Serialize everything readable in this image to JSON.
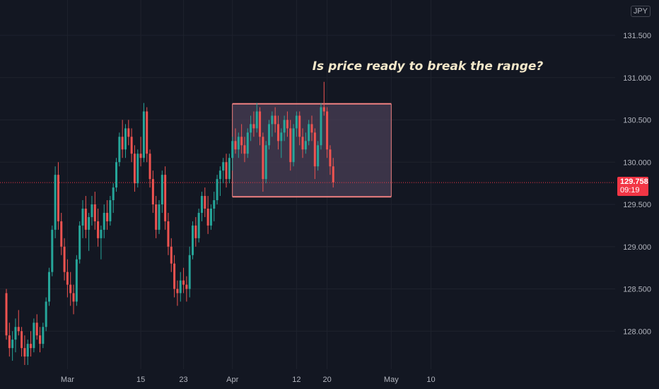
{
  "currency_badge": "JPY",
  "annotation": "Is price ready to break the range?",
  "price_tag": {
    "price": "129.758",
    "timer": "09:19",
    "color": "#f23645"
  },
  "colors": {
    "background": "#131722",
    "up": "#26a69a",
    "down": "#ef5350",
    "range_box_fill": "#4a3f55",
    "range_box_stroke": "#f08080"
  },
  "chart_data": {
    "type": "candlestick",
    "title": "",
    "xlabel": "",
    "ylabel": "",
    "y_ticks": [
      "131.500",
      "131.000",
      "130.500",
      "130.000",
      "129.500",
      "129.000",
      "128.500",
      "128.000"
    ],
    "ylim": [
      127.6,
      131.8
    ],
    "x_ticks": [
      {
        "label": "Mar",
        "index": 20
      },
      {
        "label": "15",
        "index": 44
      },
      {
        "label": "23",
        "index": 58
      },
      {
        "label": "Apr",
        "index": 74
      },
      {
        "label": "12",
        "index": 95
      },
      {
        "label": "20",
        "index": 105
      },
      {
        "label": "May",
        "index": 126
      },
      {
        "label": "10",
        "index": 139
      }
    ],
    "current_price": 129.758,
    "range_box": {
      "start_index": 74,
      "end_index": 126,
      "top": 130.69,
      "bottom": 129.59
    },
    "ohlc": [
      [
        128.45,
        128.5,
        127.9,
        127.95
      ],
      [
        127.95,
        128.1,
        127.7,
        127.8
      ],
      [
        127.8,
        128.0,
        127.65,
        127.9
      ],
      [
        127.9,
        128.15,
        127.75,
        128.05
      ],
      [
        128.05,
        128.25,
        127.95,
        128.0
      ],
      [
        128.0,
        128.05,
        127.7,
        127.8
      ],
      [
        127.8,
        127.95,
        127.6,
        127.7
      ],
      [
        127.7,
        127.9,
        127.6,
        127.85
      ],
      [
        127.85,
        128.0,
        127.7,
        127.8
      ],
      [
        127.8,
        128.15,
        127.75,
        128.1
      ],
      [
        128.1,
        128.2,
        127.9,
        127.95
      ],
      [
        127.95,
        128.05,
        127.75,
        127.85
      ],
      [
        127.85,
        128.1,
        127.8,
        128.05
      ],
      [
        128.05,
        128.4,
        128.0,
        128.35
      ],
      [
        128.35,
        128.75,
        128.3,
        128.7
      ],
      [
        128.7,
        129.25,
        128.65,
        129.2
      ],
      [
        129.2,
        129.95,
        129.1,
        129.85
      ],
      [
        129.85,
        130.0,
        129.2,
        129.3
      ],
      [
        129.3,
        129.4,
        128.9,
        129.0
      ],
      [
        129.0,
        129.1,
        128.6,
        128.7
      ],
      [
        128.7,
        128.85,
        128.4,
        128.55
      ],
      [
        128.55,
        128.7,
        128.3,
        128.45
      ],
      [
        128.45,
        128.55,
        128.2,
        128.35
      ],
      [
        128.35,
        128.9,
        128.3,
        128.85
      ],
      [
        128.85,
        129.3,
        128.8,
        129.25
      ],
      [
        129.25,
        129.55,
        129.1,
        129.45
      ],
      [
        129.45,
        129.6,
        129.1,
        129.2
      ],
      [
        129.2,
        129.4,
        128.95,
        129.35
      ],
      [
        129.35,
        129.6,
        129.25,
        129.5
      ],
      [
        129.5,
        129.65,
        129.2,
        129.3
      ],
      [
        129.3,
        129.45,
        129.0,
        129.1
      ],
      [
        129.1,
        129.25,
        128.85,
        129.2
      ],
      [
        129.2,
        129.5,
        129.1,
        129.4
      ],
      [
        129.4,
        129.55,
        129.2,
        129.3
      ],
      [
        129.3,
        129.6,
        129.25,
        129.55
      ],
      [
        129.55,
        129.75,
        129.4,
        129.7
      ],
      [
        129.7,
        130.05,
        129.65,
        130.0
      ],
      [
        130.0,
        130.35,
        129.95,
        130.3
      ],
      [
        130.3,
        130.5,
        130.05,
        130.15
      ],
      [
        130.15,
        130.45,
        130.05,
        130.4
      ],
      [
        130.4,
        130.5,
        130.2,
        130.3
      ],
      [
        130.3,
        130.4,
        130.0,
        130.1
      ],
      [
        130.1,
        130.2,
        129.65,
        129.75
      ],
      [
        129.75,
        130.15,
        129.7,
        130.1
      ],
      [
        130.1,
        130.3,
        129.95,
        130.05
      ],
      [
        130.05,
        130.7,
        130.0,
        130.6
      ],
      [
        130.6,
        130.65,
        130.0,
        130.1
      ],
      [
        130.1,
        130.15,
        129.7,
        129.8
      ],
      [
        129.8,
        129.9,
        129.4,
        129.5
      ],
      [
        129.5,
        129.6,
        129.1,
        129.2
      ],
      [
        129.2,
        129.55,
        129.15,
        129.5
      ],
      [
        129.5,
        129.9,
        129.4,
        129.85
      ],
      [
        129.85,
        129.95,
        129.2,
        129.3
      ],
      [
        129.3,
        129.4,
        128.9,
        129.0
      ],
      [
        129.0,
        129.1,
        128.7,
        128.8
      ],
      [
        128.8,
        128.9,
        128.4,
        128.5
      ],
      [
        128.5,
        128.6,
        128.3,
        128.45
      ],
      [
        128.45,
        128.7,
        128.35,
        128.6
      ],
      [
        128.6,
        128.75,
        128.45,
        128.55
      ],
      [
        128.55,
        128.65,
        128.35,
        128.5
      ],
      [
        128.5,
        129.0,
        128.4,
        128.9
      ],
      [
        128.9,
        129.3,
        128.85,
        129.25
      ],
      [
        129.25,
        129.35,
        129.0,
        129.1
      ],
      [
        129.1,
        129.45,
        129.05,
        129.4
      ],
      [
        129.4,
        129.65,
        129.3,
        129.6
      ],
      [
        129.6,
        129.7,
        129.35,
        129.45
      ],
      [
        129.45,
        129.6,
        129.15,
        129.25
      ],
      [
        129.25,
        129.5,
        129.2,
        129.45
      ],
      [
        129.45,
        129.65,
        129.3,
        129.55
      ],
      [
        129.55,
        129.85,
        129.5,
        129.8
      ],
      [
        129.8,
        129.95,
        129.6,
        129.9
      ],
      [
        129.9,
        130.05,
        129.75,
        130.0
      ],
      [
        130.0,
        130.1,
        129.7,
        129.8
      ],
      [
        129.8,
        130.1,
        129.75,
        130.05
      ],
      [
        130.05,
        130.3,
        129.9,
        130.25
      ],
      [
        130.25,
        130.4,
        130.1,
        130.15
      ],
      [
        130.15,
        130.35,
        130.05,
        130.3
      ],
      [
        130.3,
        130.45,
        130.1,
        130.2
      ],
      [
        130.2,
        130.3,
        130.0,
        130.1
      ],
      [
        130.1,
        130.4,
        130.05,
        130.35
      ],
      [
        130.35,
        130.55,
        130.25,
        130.45
      ],
      [
        130.45,
        130.6,
        130.3,
        130.4
      ],
      [
        130.4,
        130.7,
        130.35,
        130.6
      ],
      [
        130.6,
        130.65,
        130.2,
        130.3
      ],
      [
        130.3,
        130.35,
        129.65,
        129.8
      ],
      [
        129.8,
        130.25,
        129.75,
        130.2
      ],
      [
        130.2,
        130.5,
        130.15,
        130.45
      ],
      [
        130.45,
        130.6,
        130.3,
        130.55
      ],
      [
        130.55,
        130.65,
        130.35,
        130.45
      ],
      [
        130.45,
        130.55,
        130.15,
        130.25
      ],
      [
        130.25,
        130.4,
        130.05,
        130.35
      ],
      [
        130.35,
        130.55,
        130.25,
        130.5
      ],
      [
        130.5,
        130.6,
        130.3,
        130.4
      ],
      [
        130.4,
        130.5,
        129.9,
        130.0
      ],
      [
        130.0,
        130.45,
        129.95,
        130.4
      ],
      [
        130.4,
        130.6,
        130.3,
        130.55
      ],
      [
        130.55,
        130.6,
        130.2,
        130.3
      ],
      [
        130.3,
        130.4,
        130.05,
        130.15
      ],
      [
        130.15,
        130.35,
        130.1,
        130.25
      ],
      [
        130.25,
        130.5,
        130.2,
        130.45
      ],
      [
        130.45,
        130.55,
        130.25,
        130.35
      ],
      [
        130.35,
        130.4,
        129.8,
        129.95
      ],
      [
        129.95,
        130.25,
        129.9,
        130.2
      ],
      [
        130.2,
        130.7,
        130.15,
        130.65
      ],
      [
        130.65,
        130.95,
        130.55,
        130.6
      ],
      [
        130.6,
        130.65,
        130.05,
        130.15
      ],
      [
        130.15,
        130.2,
        129.85,
        129.95
      ],
      [
        129.95,
        130.05,
        129.7,
        129.76
      ]
    ]
  }
}
